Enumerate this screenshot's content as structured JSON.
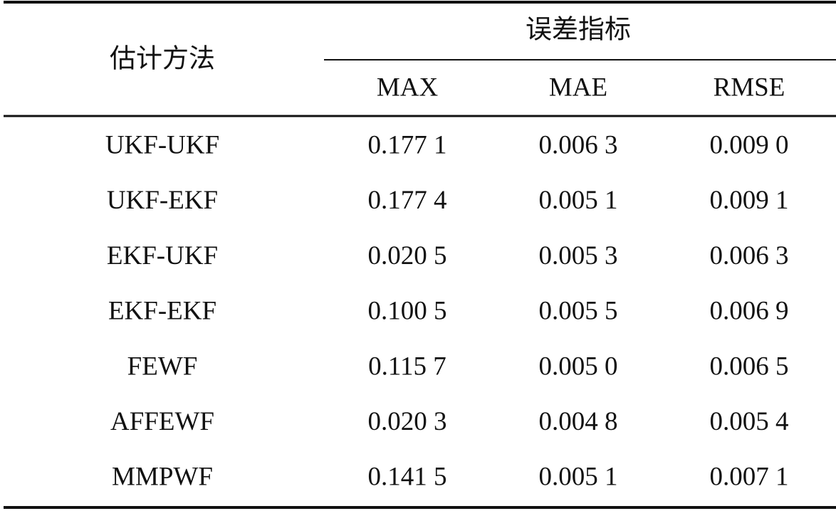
{
  "table": {
    "header": {
      "method": "估计方法",
      "group": "误差指标",
      "columns": [
        "MAX",
        "MAE",
        "RMSE"
      ]
    },
    "rows": [
      [
        "UKF-UKF",
        "0.177 1",
        "0.006 3",
        "0.009 0"
      ],
      [
        "UKF-EKF",
        "0.177 4",
        "0.005 1",
        "0.009 1"
      ],
      [
        "EKF-UKF",
        "0.020 5",
        "0.005 3",
        "0.006 3"
      ],
      [
        "EKF-EKF",
        "0.100 5",
        "0.005 5",
        "0.006 9"
      ],
      [
        "FEWF",
        "0.115 7",
        "0.005 0",
        "0.006 5"
      ],
      [
        "AFFEWF",
        "0.020 3",
        "0.004 8",
        "0.005 4"
      ],
      [
        "MMPWF",
        "0.141 5",
        "0.005 1",
        "0.007 1"
      ]
    ]
  }
}
